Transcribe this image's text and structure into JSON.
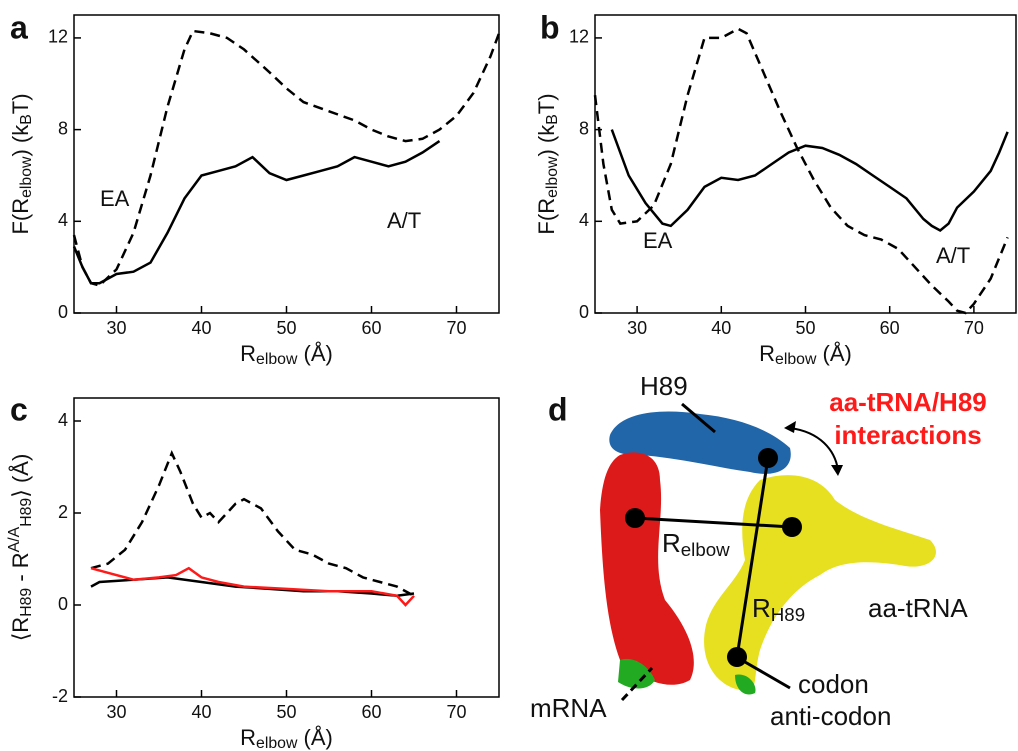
{
  "chart_data": [
    {
      "type": "line",
      "label": "a",
      "xlabel": [
        {
          "text": "R"
        },
        {
          "text": "elbow",
          "sub": true
        },
        {
          "text": " (Å)"
        }
      ],
      "ylabel": [
        {
          "text": "F(R"
        },
        {
          "text": "elbow",
          "sub": true
        },
        {
          "text": ") (k"
        },
        {
          "text": "B",
          "sub": true
        },
        {
          "text": "T)"
        }
      ],
      "xlim": [
        25,
        75
      ],
      "ylim": [
        0,
        13
      ],
      "xticks": [
        30,
        40,
        50,
        60,
        70
      ],
      "yticks": [
        0,
        4,
        8,
        12
      ],
      "annotations": [
        "EA",
        "A/T"
      ],
      "series": [
        {
          "color": "#000000",
          "dash": true,
          "x": [
            25,
            26,
            27,
            28,
            30,
            32,
            34,
            36,
            38,
            39,
            41,
            43,
            45,
            48,
            50,
            52,
            55,
            58,
            60,
            62,
            64,
            66,
            68,
            70,
            72,
            74,
            75
          ],
          "values": [
            3.4,
            2.0,
            1.3,
            1.2,
            1.9,
            3.5,
            6.0,
            9.0,
            11.5,
            12.3,
            12.2,
            12.0,
            11.5,
            10.5,
            9.8,
            9.2,
            8.8,
            8.4,
            8.0,
            7.7,
            7.5,
            7.6,
            8.0,
            8.6,
            9.6,
            11.2,
            12.2
          ]
        },
        {
          "color": "#000000",
          "dash": false,
          "x": [
            25,
            26,
            27,
            28,
            30,
            32,
            34,
            36,
            38,
            40,
            42,
            44,
            46,
            48,
            50,
            52,
            54,
            56,
            58,
            60,
            62,
            64,
            66,
            68
          ],
          "values": [
            2.9,
            2.0,
            1.3,
            1.3,
            1.7,
            1.8,
            2.2,
            3.5,
            5.0,
            6.0,
            6.2,
            6.4,
            6.8,
            6.1,
            5.8,
            6.0,
            6.2,
            6.4,
            6.8,
            6.6,
            6.4,
            6.6,
            7.0,
            7.5
          ]
        }
      ]
    },
    {
      "type": "line",
      "label": "b",
      "xlabel": [
        {
          "text": "R"
        },
        {
          "text": "elbow",
          "sub": true
        },
        {
          "text": " (Å)"
        }
      ],
      "ylabel": [
        {
          "text": "F(R"
        },
        {
          "text": "elbow",
          "sub": true
        },
        {
          "text": ") (k"
        },
        {
          "text": "B",
          "sub": true
        },
        {
          "text": "T)"
        }
      ],
      "xlim": [
        25,
        75
      ],
      "ylim": [
        0,
        13
      ],
      "xticks": [
        30,
        40,
        50,
        60,
        70
      ],
      "yticks": [
        0,
        4,
        8,
        12
      ],
      "annotations": [
        "EA",
        "A/T"
      ],
      "series": [
        {
          "color": "#000000",
          "dash": true,
          "x": [
            25,
            26,
            27,
            28,
            30,
            32,
            34,
            36,
            38,
            40,
            42,
            43,
            45,
            47,
            49,
            51,
            53,
            55,
            57,
            59,
            61,
            63,
            65,
            67,
            68,
            69,
            70,
            72,
            74
          ],
          "values": [
            9.5,
            6.5,
            4.5,
            3.9,
            4.0,
            4.7,
            6.5,
            9.5,
            12.0,
            12.0,
            12.4,
            12.2,
            10.5,
            8.8,
            7.2,
            5.8,
            4.6,
            3.8,
            3.4,
            3.2,
            2.8,
            2.0,
            1.2,
            0.5,
            0.1,
            0,
            0.4,
            1.5,
            3.3
          ]
        },
        {
          "color": "#000000",
          "dash": false,
          "x": [
            27,
            29,
            31,
            33,
            34,
            36,
            38,
            40,
            42,
            44,
            46,
            48,
            50,
            52,
            54,
            56,
            58,
            60,
            62,
            64,
            65,
            66,
            67,
            68,
            70,
            72,
            73,
            74
          ],
          "values": [
            8.0,
            6.0,
            4.8,
            3.9,
            3.8,
            4.5,
            5.5,
            5.9,
            5.8,
            6.0,
            6.5,
            7.0,
            7.3,
            7.2,
            6.9,
            6.5,
            6.0,
            5.5,
            5.0,
            4.1,
            3.8,
            3.6,
            3.9,
            4.6,
            5.3,
            6.2,
            7.0,
            7.9
          ]
        }
      ]
    },
    {
      "type": "line",
      "label": "c",
      "xlabel": [
        {
          "text": "R"
        },
        {
          "text": "elbow",
          "sub": true
        },
        {
          "text": " (Å)"
        }
      ],
      "ylabel": [
        {
          "text": "⟨R"
        },
        {
          "text": "H89",
          "sub": true
        },
        {
          "text": " - R"
        },
        {
          "text": "A/A",
          "sup": true
        },
        {
          "text": "H89",
          "sub": true
        },
        {
          "text": "⟩ (Å)"
        }
      ],
      "xlim": [
        25,
        75
      ],
      "ylim": [
        -2,
        4.5
      ],
      "xticks": [
        30,
        40,
        50,
        60,
        70
      ],
      "yticks": [
        -2,
        0,
        2,
        4
      ],
      "annotations": [],
      "series": [
        {
          "color": "#000000",
          "dash": true,
          "x": [
            27,
            29,
            31,
            33,
            35,
            36.5,
            37.5,
            39,
            40,
            41,
            42,
            43,
            44,
            45,
            47,
            49,
            51,
            53,
            55,
            57,
            59,
            61,
            63,
            65
          ],
          "values": [
            0.8,
            0.9,
            1.2,
            1.8,
            2.6,
            3.3,
            2.9,
            2.2,
            1.9,
            2.0,
            1.8,
            2.0,
            2.2,
            2.3,
            2.1,
            1.6,
            1.2,
            1.1,
            0.9,
            0.8,
            0.6,
            0.5,
            0.4,
            0.2
          ]
        },
        {
          "color": "#000000",
          "dash": false,
          "x": [
            27,
            28,
            32,
            36,
            40,
            44,
            48,
            52,
            56,
            60,
            63,
            65
          ],
          "values": [
            0.4,
            0.5,
            0.55,
            0.6,
            0.5,
            0.4,
            0.35,
            0.3,
            0.3,
            0.25,
            0.2,
            0.25
          ]
        },
        {
          "color": "#ff1a1a",
          "dash": false,
          "x": [
            27,
            29,
            32,
            35,
            37,
            38.5,
            40,
            42,
            45,
            50,
            55,
            60,
            63,
            64,
            65
          ],
          "values": [
            0.8,
            0.7,
            0.55,
            0.6,
            0.65,
            0.8,
            0.6,
            0.5,
            0.4,
            0.35,
            0.3,
            0.3,
            0.2,
            0.0,
            0.2
          ]
        }
      ]
    }
  ],
  "diagram": {
    "label": "d",
    "h89": "H89",
    "interaction_1": "aa-tRNA/H89",
    "interaction_2": "interactions",
    "relbow": [
      {
        "text": "R"
      },
      {
        "text": "elbow",
        "sub": true
      }
    ],
    "rh89": [
      {
        "text": "R"
      },
      {
        "text": "H89",
        "sub": true
      }
    ],
    "trna": "aa-tRNA",
    "mrna": "mRNA",
    "codon": "codon",
    "anticodon": "anti-codon"
  }
}
